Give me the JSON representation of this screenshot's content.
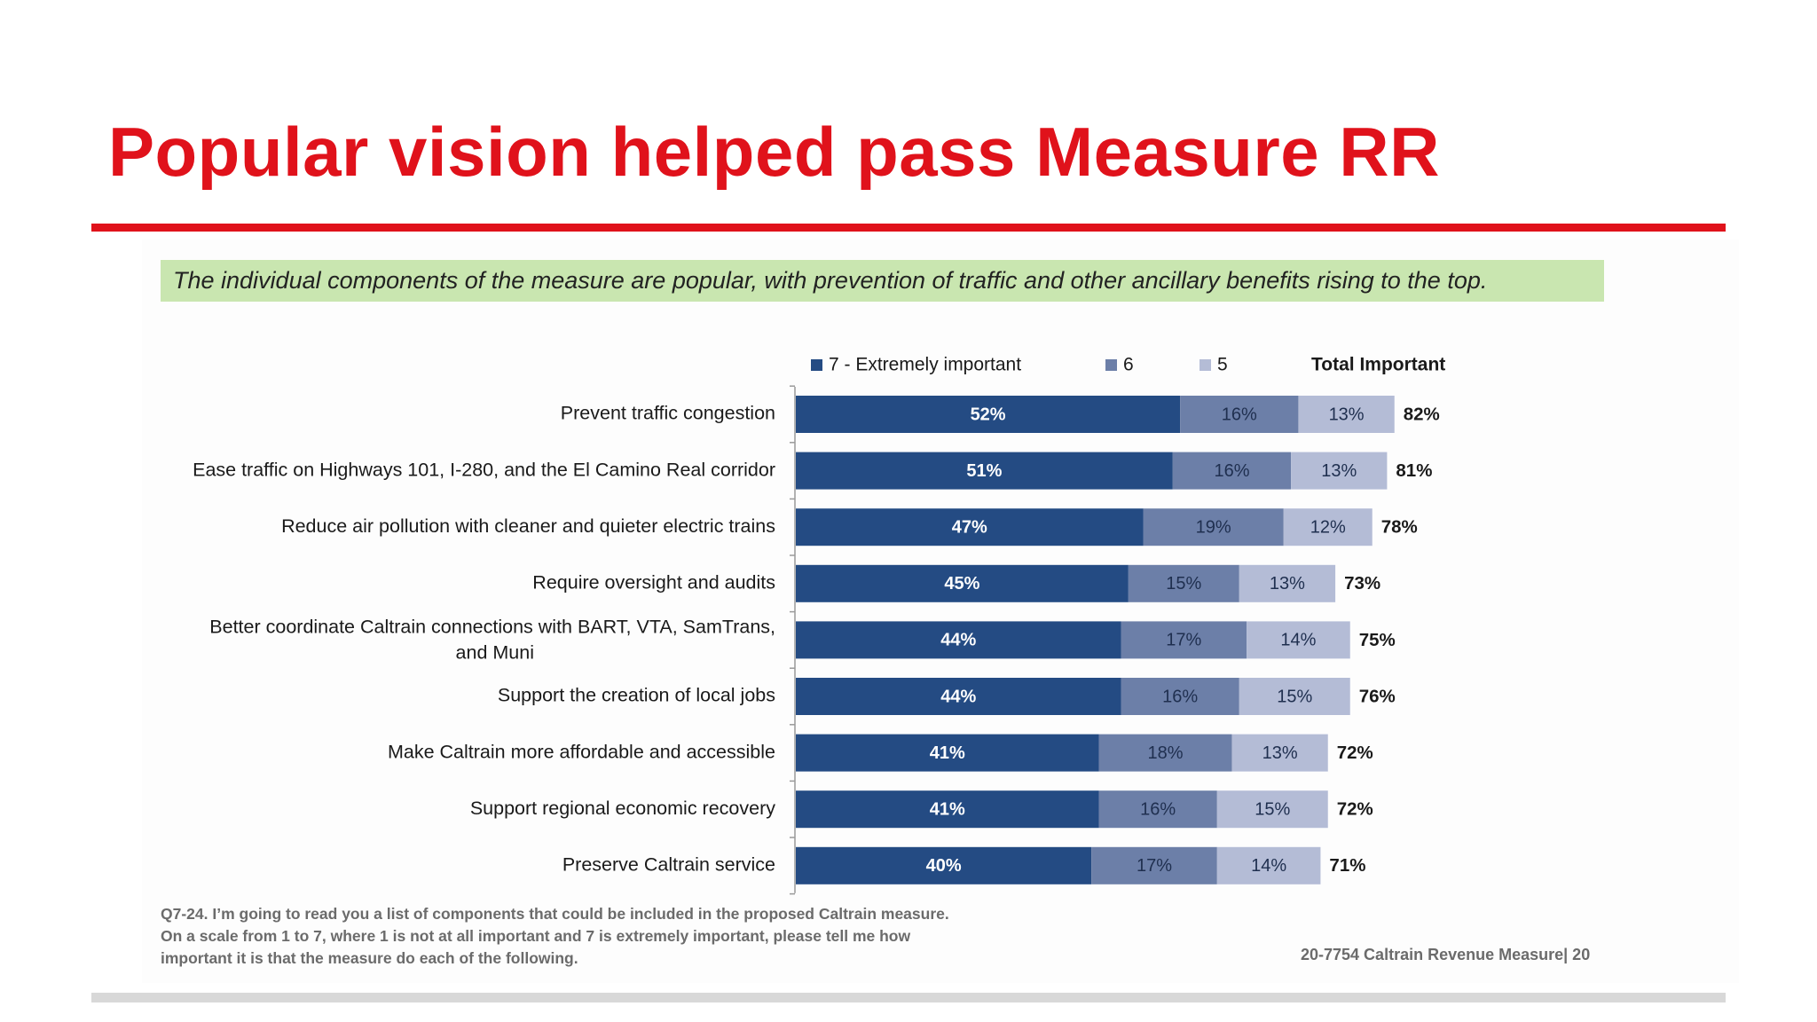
{
  "slide": {
    "title": "Popular vision helped pass Measure RR",
    "banner": "The individual components of the measure are popular, with prevention of traffic and other ancillary benefits rising to the top.",
    "footnote": [
      "Q7-24. I’m going to read you a list of components that could be included in the proposed Caltrain measure.",
      "On a scale from 1 to 7, where 1 is not at all important and 7 is extremely important, please tell me how",
      "important it is that the measure do each of the following."
    ],
    "source": "20-7754 Caltrain Revenue Measure| 20"
  },
  "colors": {
    "title": "#e0121b",
    "banner_bg": "#c9e6b0",
    "series_7": "#244b83",
    "series_6": "#6c7fa8",
    "series_5": "#b4bcd6"
  },
  "chart_data": {
    "type": "bar",
    "orientation": "horizontal",
    "stacked": true,
    "unit": "%",
    "categories": [
      "Prevent traffic congestion",
      "Ease traffic on Highways 101, I-280, and the El Camino Real corridor",
      "Reduce air pollution with cleaner and quieter electric trains",
      "Require oversight and audits",
      "Better coordinate Caltrain connections with BART, VTA, SamTrans, and Muni",
      "Support the creation of local jobs",
      "Make Caltrain more affordable and accessible",
      "Support regional economic recovery",
      "Preserve Caltrain service"
    ],
    "series": [
      {
        "name": "7 - Extremely important",
        "values": [
          52,
          51,
          47,
          45,
          44,
          44,
          41,
          41,
          40
        ]
      },
      {
        "name": "6",
        "values": [
          16,
          16,
          19,
          15,
          17,
          16,
          18,
          16,
          17
        ]
      },
      {
        "name": "5",
        "values": [
          13,
          13,
          12,
          13,
          14,
          15,
          13,
          15,
          14
        ]
      }
    ],
    "totals_label": "Total Important",
    "totals": [
      82,
      81,
      78,
      73,
      75,
      76,
      72,
      72,
      71
    ],
    "legend_position": "top",
    "grid": false
  }
}
